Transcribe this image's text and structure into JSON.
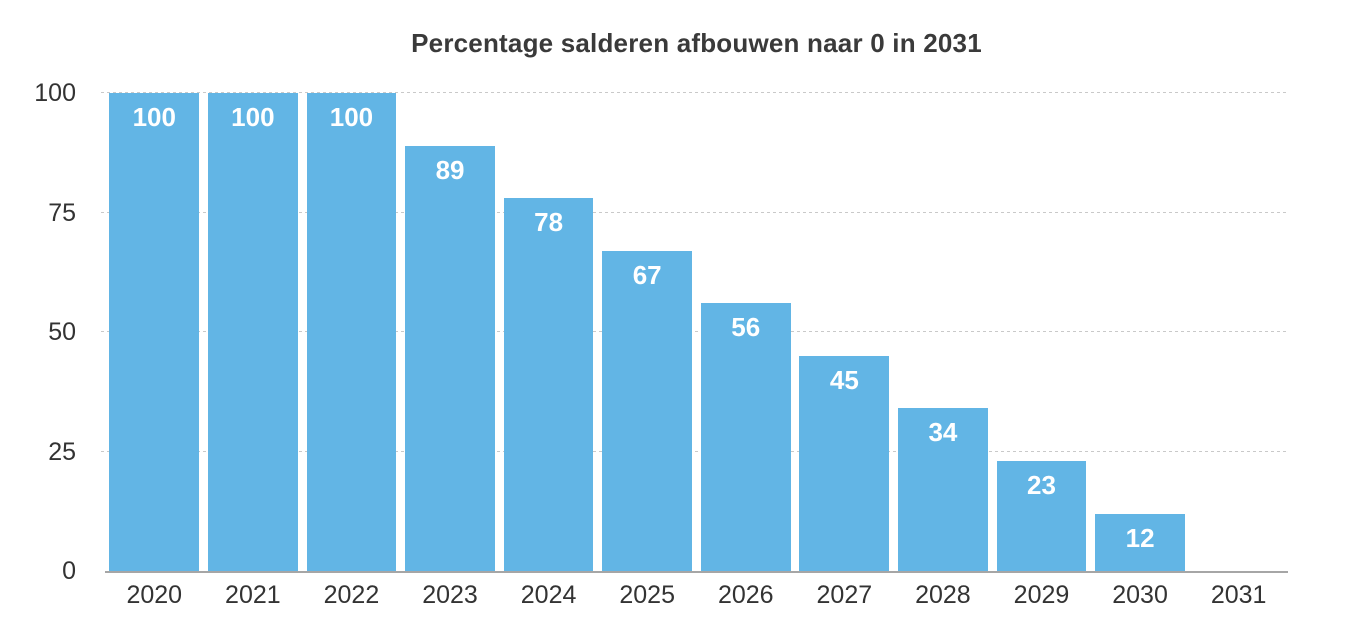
{
  "title": "Percentage salderen afbouwen naar 0 in 2031",
  "colors": {
    "background": "#ffffff",
    "bar": "#62b5e5",
    "bar_label": "#ffffff",
    "title_text": "#3a3a3a",
    "axis_text": "#333333",
    "gridline": "#c9c9c9",
    "axis_line": "#a6a6a6"
  },
  "chart_data": {
    "type": "bar",
    "title": "Percentage salderen afbouwen naar 0 in 2031",
    "categories": [
      "2020",
      "2021",
      "2022",
      "2023",
      "2024",
      "2025",
      "2026",
      "2027",
      "2028",
      "2029",
      "2030",
      "2031"
    ],
    "values": [
      100,
      100,
      100,
      89,
      78,
      67,
      56,
      45,
      34,
      23,
      12,
      0
    ],
    "xlabel": "",
    "ylabel": "",
    "ylim": [
      0,
      100
    ],
    "yticks": [
      0,
      25,
      50,
      75,
      100
    ],
    "grid": true,
    "gridline_style": "dashed",
    "legend": "none",
    "bar_value_labels": "inside-top"
  }
}
